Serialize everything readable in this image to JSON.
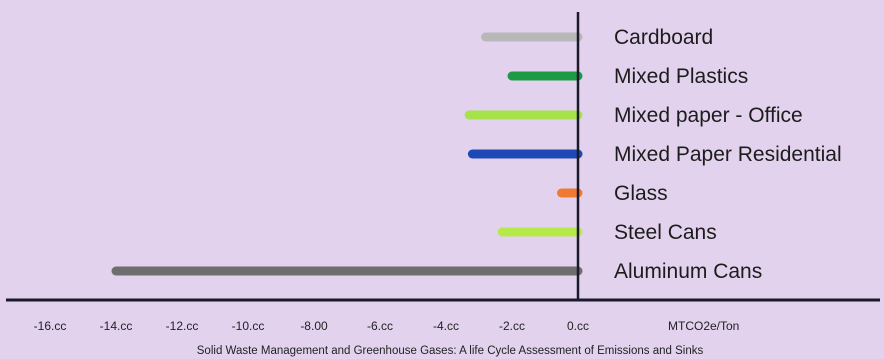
{
  "chart_data": {
    "type": "bar",
    "orientation": "horizontal",
    "categories": [
      "Cardboard",
      "Mixed Plastics",
      "Mixed paper - Office",
      "Mixed Paper Residential",
      "Glass",
      "Steel Cans",
      "Aluminum Cans"
    ],
    "values": [
      -2.8,
      -2.0,
      -3.3,
      -3.2,
      -0.5,
      -2.3,
      -14.0
    ],
    "colors": [
      "#b8b8b8",
      "#1e9a46",
      "#a6e24a",
      "#1e48b4",
      "#f07a32",
      "#b6ea4a",
      "#6e6e6e"
    ],
    "xlim": [
      -16.5,
      0
    ],
    "tick_values": [
      -16,
      -14,
      -12,
      -10,
      -8,
      -6,
      -4,
      -2,
      0
    ],
    "tick_labels": [
      "-16.cc",
      "-14.cc",
      "-12.cc",
      "-10.cc",
      "-8.00",
      "-6.cc",
      "-4.cc",
      "-2.cc",
      "0.cc"
    ],
    "unit_label": "MTCO2e/Ton",
    "caption": "Solid Waste Management and Greenhouse Gases: A life Cycle Assessment of Emissions and Sinks",
    "legend": "none",
    "grid": false
  }
}
